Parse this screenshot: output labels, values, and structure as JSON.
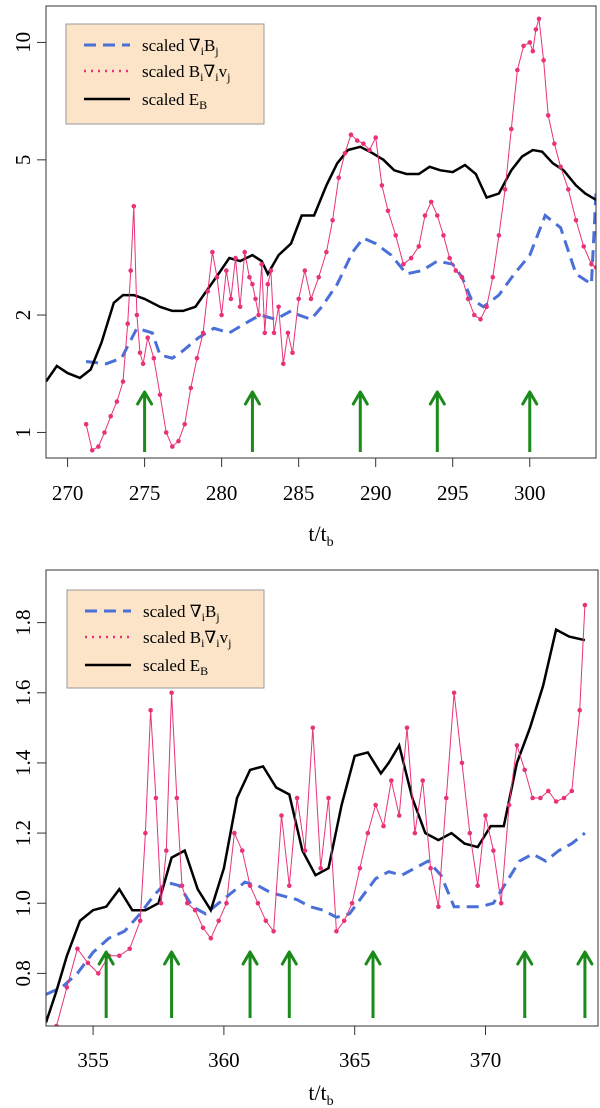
{
  "chart_data": [
    {
      "type": "line",
      "xlabel": "t/t_b",
      "ylabel": "",
      "ylog": true,
      "xlim": [
        268.6,
        304.3
      ],
      "ylim": [
        0.86,
        12.4
      ],
      "xticks": [
        270,
        275,
        280,
        285,
        290,
        295,
        300
      ],
      "yticks": [
        1,
        2,
        5,
        10
      ],
      "legend": {
        "position": "top-left",
        "entries": [
          {
            "name": "grad_b",
            "pre": "scaled ∇",
            "s1": "i",
            "mid": "B",
            "s2": "j",
            "mid2": "",
            "s3": ""
          },
          {
            "name": "b_grad_v",
            "pre": "scaled B",
            "s1": "i",
            "mid": "∇",
            "s2": "i",
            "mid2": "v",
            "s3": "j"
          },
          {
            "name": "eb",
            "pre": "scaled E",
            "s1": "B",
            "mid": "",
            "s2": "",
            "mid2": "",
            "s3": ""
          }
        ]
      },
      "series": [
        {
          "name": "scaled ∇iBj",
          "style": "dashed",
          "color": "#4a6fd8",
          "x": [
            271.2,
            272.5,
            273.5,
            274.5,
            275.5,
            276.0,
            276.8,
            277.5,
            278.5,
            279.5,
            280.5,
            281.5,
            282.5,
            283.5,
            284.5,
            285.0,
            285.8,
            286.5,
            287.5,
            288.5,
            289.2,
            290.0,
            291.0,
            292.0,
            293.0,
            294.0,
            295.0,
            295.6,
            296.2,
            297.0,
            298.0,
            299.0,
            300.0,
            301.0,
            302.0,
            303.0,
            304.0,
            304.3
          ],
          "y": [
            1.52,
            1.5,
            1.55,
            1.85,
            1.8,
            1.58,
            1.55,
            1.62,
            1.75,
            1.85,
            1.8,
            1.9,
            2.0,
            1.95,
            2.05,
            2.0,
            1.95,
            2.1,
            2.4,
            2.9,
            3.15,
            3.05,
            2.85,
            2.55,
            2.6,
            2.75,
            2.7,
            2.5,
            2.2,
            2.1,
            2.25,
            2.55,
            2.85,
            3.6,
            3.35,
            2.55,
            2.4,
            4.1
          ]
        },
        {
          "name": "scaled EB",
          "style": "solid",
          "color": "#000000",
          "x": [
            268.6,
            269.3,
            270.0,
            270.8,
            271.5,
            272.2,
            273.0,
            273.6,
            274.3,
            275.0,
            276.0,
            276.8,
            277.5,
            278.3,
            279.0,
            279.8,
            280.5,
            281.2,
            282.0,
            282.6,
            283.0,
            283.7,
            284.5,
            285.2,
            286.0,
            286.8,
            287.5,
            288.2,
            289.0,
            289.8,
            290.5,
            291.2,
            292.0,
            292.8,
            293.5,
            294.2,
            295.0,
            295.8,
            296.5,
            297.2,
            298.0,
            298.8,
            299.5,
            300.2,
            300.8,
            301.5,
            302.2,
            303.0,
            303.6,
            304.3
          ],
          "y": [
            1.35,
            1.48,
            1.42,
            1.38,
            1.45,
            1.7,
            2.15,
            2.25,
            2.25,
            2.2,
            2.1,
            2.05,
            2.05,
            2.1,
            2.3,
            2.55,
            2.8,
            2.75,
            2.85,
            2.75,
            2.55,
            2.85,
            3.05,
            3.6,
            3.6,
            4.3,
            4.9,
            5.3,
            5.4,
            5.2,
            5.0,
            4.7,
            4.6,
            4.6,
            4.8,
            4.7,
            4.65,
            4.85,
            4.6,
            4.0,
            4.1,
            4.7,
            5.1,
            5.3,
            5.25,
            4.9,
            4.7,
            4.3,
            4.1,
            3.95
          ]
        },
        {
          "name": "scaled BiViVj",
          "style": "dotted-markers",
          "color": "#e8337a",
          "x": [
            271.2,
            271.6,
            272.0,
            272.4,
            272.8,
            273.2,
            273.6,
            273.9,
            274.1,
            274.3,
            274.5,
            274.7,
            274.9,
            275.2,
            275.6,
            276.0,
            276.4,
            276.8,
            277.2,
            277.6,
            278.0,
            278.4,
            278.8,
            279.1,
            279.4,
            279.7,
            280.0,
            280.3,
            280.6,
            280.9,
            281.2,
            281.5,
            281.8,
            282.0,
            282.2,
            282.4,
            282.6,
            282.8,
            283.0,
            283.2,
            283.4,
            283.7,
            284.0,
            284.3,
            284.6,
            285.0,
            285.4,
            285.8,
            286.3,
            286.8,
            287.2,
            287.6,
            288.0,
            288.4,
            288.8,
            289.2,
            289.6,
            290.0,
            290.4,
            290.8,
            291.3,
            291.8,
            292.3,
            292.8,
            293.2,
            293.6,
            294.0,
            294.4,
            294.8,
            295.2,
            295.6,
            296.0,
            296.4,
            296.8,
            297.2,
            297.6,
            298.0,
            298.4,
            298.8,
            299.2,
            299.6,
            300.0,
            300.2,
            300.4,
            300.6,
            300.9,
            301.2,
            301.6,
            302.0,
            302.5,
            303.0,
            303.5,
            304.0,
            304.3
          ],
          "y": [
            1.05,
            0.9,
            0.92,
            1.0,
            1.1,
            1.2,
            1.35,
            1.9,
            2.6,
            3.8,
            2.0,
            1.6,
            1.5,
            1.75,
            1.55,
            1.25,
            1.0,
            0.92,
            0.95,
            1.05,
            1.3,
            1.55,
            1.8,
            2.3,
            2.9,
            2.5,
            2.0,
            2.6,
            2.2,
            2.8,
            2.1,
            2.9,
            2.5,
            2.4,
            2.2,
            2.0,
            2.7,
            1.8,
            2.4,
            2.6,
            1.8,
            2.1,
            1.5,
            1.8,
            1.6,
            2.2,
            2.6,
            2.2,
            2.5,
            2.9,
            3.5,
            4.5,
            5.2,
            5.8,
            5.6,
            5.5,
            5.3,
            5.7,
            4.3,
            3.7,
            3.2,
            2.7,
            2.8,
            3.0,
            3.6,
            3.9,
            3.6,
            3.2,
            2.8,
            2.6,
            2.5,
            2.2,
            2.0,
            1.95,
            2.1,
            2.5,
            3.2,
            4.2,
            6.0,
            8.5,
            9.8,
            10.0,
            9.5,
            10.8,
            11.5,
            9.0,
            6.5,
            5.5,
            4.8,
            4.2,
            3.5,
            3.0,
            2.7,
            2.65
          ]
        }
      ],
      "arrows_x": [
        275,
        282,
        289,
        294,
        300
      ]
    },
    {
      "type": "line",
      "xlabel": "t/t_b",
      "ylabel": "",
      "ylog": false,
      "xlim": [
        353.2,
        374.3
      ],
      "ylim": [
        0.65,
        1.95
      ],
      "xticks": [
        355,
        360,
        365,
        370
      ],
      "yticks": [
        0.8,
        1.0,
        1.2,
        1.4,
        1.6,
        1.8
      ],
      "ytick_labels": [
        "0.8",
        "1.0",
        "1.2",
        "1.4",
        "1.6",
        "1.8"
      ],
      "legend": {
        "position": "top-left",
        "entries": [
          {
            "name": "grad_b",
            "pre": "scaled ∇",
            "s1": "i",
            "mid": "B",
            "s2": "j",
            "mid2": "",
            "s3": ""
          },
          {
            "name": "b_grad_v",
            "pre": "scaled B",
            "s1": "i",
            "mid": "∇",
            "s2": "i",
            "mid2": "v",
            "s3": "j"
          },
          {
            "name": "eb",
            "pre": "scaled E",
            "s1": "B",
            "mid": "",
            "s2": "",
            "mid2": "",
            "s3": ""
          }
        ]
      },
      "series": [
        {
          "name": "scaled ∇iBj",
          "style": "dashed",
          "color": "#4a6fd8",
          "x": [
            353.2,
            353.8,
            354.4,
            355.0,
            355.6,
            356.2,
            356.8,
            357.3,
            357.8,
            358.3,
            358.8,
            359.3,
            359.8,
            360.3,
            360.8,
            361.3,
            361.8,
            362.3,
            362.8,
            363.3,
            363.8,
            364.3,
            364.8,
            365.3,
            365.8,
            366.3,
            366.8,
            367.3,
            367.8,
            368.3,
            368.8,
            369.3,
            369.8,
            370.3,
            370.8,
            371.3,
            371.8,
            372.3,
            372.8,
            373.3,
            373.8
          ],
          "y": [
            0.74,
            0.76,
            0.8,
            0.86,
            0.9,
            0.92,
            0.97,
            1.02,
            1.06,
            1.05,
            0.99,
            0.97,
            1.0,
            1.03,
            1.06,
            1.05,
            1.03,
            1.02,
            1.01,
            0.99,
            0.98,
            0.96,
            0.97,
            1.02,
            1.07,
            1.09,
            1.08,
            1.1,
            1.12,
            1.08,
            0.99,
            0.99,
            0.99,
            1.0,
            1.06,
            1.12,
            1.14,
            1.12,
            1.15,
            1.17,
            1.2
          ]
        },
        {
          "name": "scaled EB",
          "style": "solid",
          "color": "#000000",
          "x": [
            353.2,
            353.6,
            354.0,
            354.5,
            355.0,
            355.5,
            356.0,
            356.5,
            357.0,
            357.5,
            358.0,
            358.5,
            359.0,
            359.5,
            360.0,
            360.5,
            361.0,
            361.5,
            362.0,
            362.5,
            363.0,
            363.5,
            364.0,
            364.5,
            365.0,
            365.5,
            366.0,
            366.3,
            366.7,
            367.2,
            367.7,
            368.2,
            368.7,
            369.2,
            369.7,
            370.2,
            370.7,
            371.2,
            371.7,
            372.2,
            372.7,
            373.2,
            373.8
          ],
          "y": [
            0.66,
            0.75,
            0.85,
            0.95,
            0.98,
            0.99,
            1.04,
            0.98,
            0.98,
            1.0,
            1.13,
            1.15,
            1.04,
            0.98,
            1.1,
            1.3,
            1.38,
            1.39,
            1.33,
            1.31,
            1.15,
            1.08,
            1.1,
            1.28,
            1.42,
            1.43,
            1.37,
            1.4,
            1.45,
            1.3,
            1.2,
            1.18,
            1.2,
            1.17,
            1.16,
            1.22,
            1.22,
            1.4,
            1.5,
            1.62,
            1.78,
            1.76,
            1.75
          ]
        },
        {
          "name": "scaled BiViVj",
          "style": "dotted-markers",
          "color": "#e8337a",
          "x": [
            353.6,
            354.0,
            354.4,
            354.8,
            355.2,
            355.6,
            356.0,
            356.4,
            356.8,
            357.0,
            357.2,
            357.4,
            357.6,
            357.8,
            358.0,
            358.2,
            358.4,
            358.6,
            358.9,
            359.2,
            359.5,
            359.8,
            360.1,
            360.4,
            360.7,
            361.0,
            361.3,
            361.6,
            361.9,
            362.2,
            362.5,
            362.8,
            363.1,
            363.4,
            363.7,
            364.0,
            364.3,
            364.6,
            364.9,
            365.2,
            365.5,
            365.8,
            366.1,
            366.4,
            366.7,
            367.0,
            367.3,
            367.6,
            367.9,
            368.2,
            368.5,
            368.8,
            369.1,
            369.4,
            369.7,
            370.0,
            370.3,
            370.6,
            370.9,
            371.2,
            371.5,
            371.8,
            372.1,
            372.4,
            372.7,
            373.0,
            373.3,
            373.6,
            373.8
          ],
          "y": [
            0.65,
            0.76,
            0.87,
            0.83,
            0.8,
            0.85,
            0.85,
            0.87,
            0.95,
            1.2,
            1.55,
            1.3,
            1.0,
            1.15,
            1.6,
            1.3,
            1.05,
            1.0,
            0.98,
            0.93,
            0.9,
            0.95,
            1.0,
            1.2,
            1.15,
            1.05,
            1.0,
            0.95,
            0.92,
            1.25,
            1.05,
            1.3,
            1.15,
            1.5,
            1.1,
            1.3,
            0.92,
            0.95,
            1.0,
            1.1,
            1.2,
            1.28,
            1.22,
            1.35,
            1.25,
            1.5,
            1.2,
            1.35,
            1.1,
            0.99,
            1.3,
            1.6,
            1.4,
            1.2,
            1.05,
            1.25,
            1.15,
            1.0,
            1.28,
            1.45,
            1.38,
            1.3,
            1.3,
            1.32,
            1.29,
            1.3,
            1.32,
            1.55,
            1.85
          ]
        }
      ],
      "arrows_x": [
        355.5,
        358,
        361,
        362.5,
        365.7,
        371.5,
        373.8
      ]
    }
  ]
}
